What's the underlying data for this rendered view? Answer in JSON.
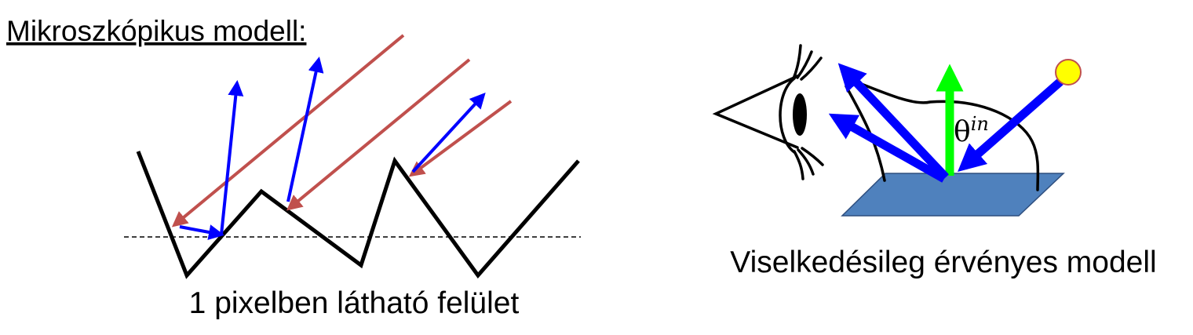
{
  "left_panel": {
    "title": "Mikroszkópikus modell:",
    "caption": "1 pixelben látható felület"
  },
  "right_panel": {
    "caption": "Viselkedésileg érvényes modell",
    "angle_symbol": "θ",
    "angle_superscript": "in"
  },
  "colors": {
    "incoming_ray": "#c0504d",
    "reflected_ray": "#0000ff",
    "normal": "#00ff00",
    "surface_patch": "#4f81bd",
    "light_source": "#ffff00",
    "outline": "#000000"
  },
  "icons": [
    "eye-icon",
    "light-source-icon"
  ]
}
